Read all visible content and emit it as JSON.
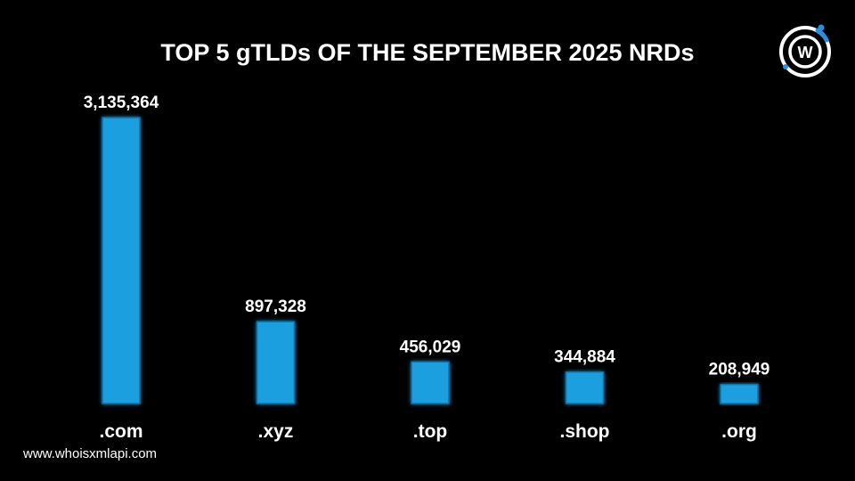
{
  "chart_data": {
    "type": "bar",
    "title": "TOP 5 gTLDs OF THE SEPTEMBER 2025 NRDs",
    "categories": [
      ".com",
      ".xyz",
      ".top",
      ".shop",
      ".org"
    ],
    "values": [
      3135364,
      897328,
      456029,
      344884,
      208949
    ],
    "value_labels": [
      "3,135,364",
      "897,328",
      "456,029",
      "344,884",
      "208,949"
    ],
    "xlabel": "",
    "ylabel": "",
    "ylim": [
      0,
      3135364
    ],
    "grid": false,
    "bar_color": "#1a9fdf",
    "bar_glow_color": "#0f6fa8"
  },
  "footer": {
    "url": "www.whoisxmlapi.com"
  },
  "logo": {
    "icon": "whoisxmlapi-logo-icon",
    "letter": "W",
    "ring_color": "#ffffff",
    "accent_color": "#2b8fe0"
  }
}
